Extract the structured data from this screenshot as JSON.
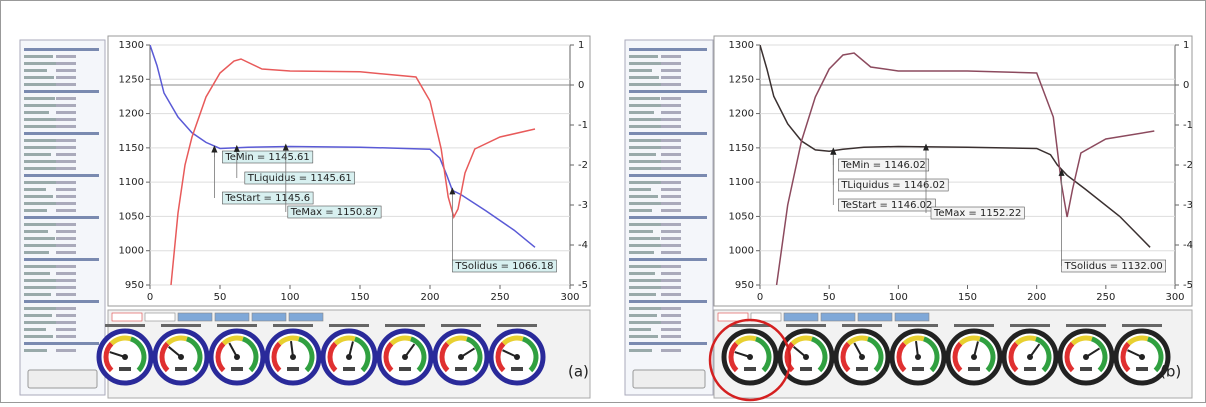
{
  "panels": [
    {
      "label": "(a)",
      "chart_data": {
        "type": "line",
        "grid": true,
        "xlim": [
          0,
          300
        ],
        "xticks": [
          0,
          50,
          100,
          150,
          200,
          250,
          300
        ],
        "ylim": [
          950,
          1300
        ],
        "yticks": [
          950,
          1000,
          1050,
          1100,
          1150,
          1200,
          1250,
          1300
        ],
        "y2lim": [
          -5,
          1
        ],
        "y2ticks": [
          -5,
          -4,
          -3,
          -2,
          -1,
          0,
          1
        ],
        "series": [
          {
            "color": "#5a5ad6",
            "x": [
              0,
              5,
              10,
              20,
              30,
              40,
              50,
              60,
              70,
              100,
              150,
              200,
              207,
              212,
              216,
              222,
              240,
              260,
              275
            ],
            "values": [
              1300,
              1270,
              1230,
              1195,
              1172,
              1158,
              1149,
              1150,
              1151,
              1152,
              1151,
              1148,
              1135,
              1110,
              1088,
              1082,
              1058,
              1030,
              1005
            ]
          },
          {
            "color": "#e85a5a",
            "axis": "y2",
            "x": [
              15,
              20,
              25,
              30,
              40,
              50,
              60,
              65,
              80,
              100,
              150,
              190,
              200,
              208,
              213,
              217,
              220,
              225,
              232,
              250,
              275
            ],
            "values": [
              -5,
              -3.2,
              -2,
              -1.3,
              -0.3,
              0.3,
              0.6,
              0.65,
              0.4,
              0.35,
              0.33,
              0.2,
              -0.4,
              -1.6,
              -2.8,
              -3.3,
              -3.1,
              -2.2,
              -1.6,
              -1.3,
              -1.1
            ]
          }
        ],
        "annotations": [
          {
            "text": "TeMin = 1145.61",
            "x": 46,
            "y": 1149
          },
          {
            "text": "TLiquidus = 1145.61",
            "x": 62,
            "y": 1150
          },
          {
            "text": "TeStart = 1145.6",
            "x": 46,
            "y": 1149
          },
          {
            "text": "TeMax = 1150.87",
            "x": 97,
            "y": 1152
          },
          {
            "text": "TSolidus = 1066.18",
            "x": 216,
            "y": 1088
          }
        ]
      }
    },
    {
      "label": "(b)",
      "chart_data": {
        "type": "line",
        "grid": true,
        "xlim": [
          0,
          300
        ],
        "xticks": [
          0,
          50,
          100,
          150,
          200,
          250,
          300
        ],
        "ylim": [
          950,
          1300
        ],
        "yticks": [
          950,
          1000,
          1050,
          1100,
          1150,
          1200,
          1250,
          1300
        ],
        "y2lim": [
          -5,
          1
        ],
        "y2ticks": [
          -5,
          -4,
          -3,
          -2,
          -1,
          0,
          1
        ],
        "series": [
          {
            "color": "#3a3030",
            "x": [
              0,
              5,
              10,
              20,
              30,
              40,
              50,
              60,
              75,
              100,
              150,
              200,
              210,
              215,
              222,
              235,
              260,
              282
            ],
            "values": [
              1300,
              1265,
              1225,
              1185,
              1160,
              1147,
              1145,
              1148,
              1151,
              1152,
              1151,
              1149,
              1140,
              1125,
              1110,
              1090,
              1050,
              1005
            ]
          },
          {
            "color": "#8c4a5e",
            "axis": "y2",
            "x": [
              12,
              20,
              30,
              40,
              50,
              60,
              68,
              80,
              100,
              150,
              200,
              212,
              218,
              222,
              226,
              232,
              250,
              285
            ],
            "values": [
              -5,
              -3,
              -1.4,
              -0.3,
              0.4,
              0.75,
              0.8,
              0.45,
              0.35,
              0.35,
              0.3,
              -0.8,
              -2.5,
              -3.3,
              -2.6,
              -1.7,
              -1.35,
              -1.15
            ]
          }
        ],
        "annotations": [
          {
            "text": "TeMin = 1146.02",
            "x": 53,
            "y": 1146
          },
          {
            "text": "TLiquidus = 1146.02",
            "x": 53,
            "y": 1146
          },
          {
            "text": "TeStart = 1146.02",
            "x": 53,
            "y": 1146
          },
          {
            "text": "TeMax = 1152.22",
            "x": 120,
            "y": 1152
          },
          {
            "text": "TSolidus = 1132.00",
            "x": 218,
            "y": 1115
          }
        ]
      }
    }
  ]
}
